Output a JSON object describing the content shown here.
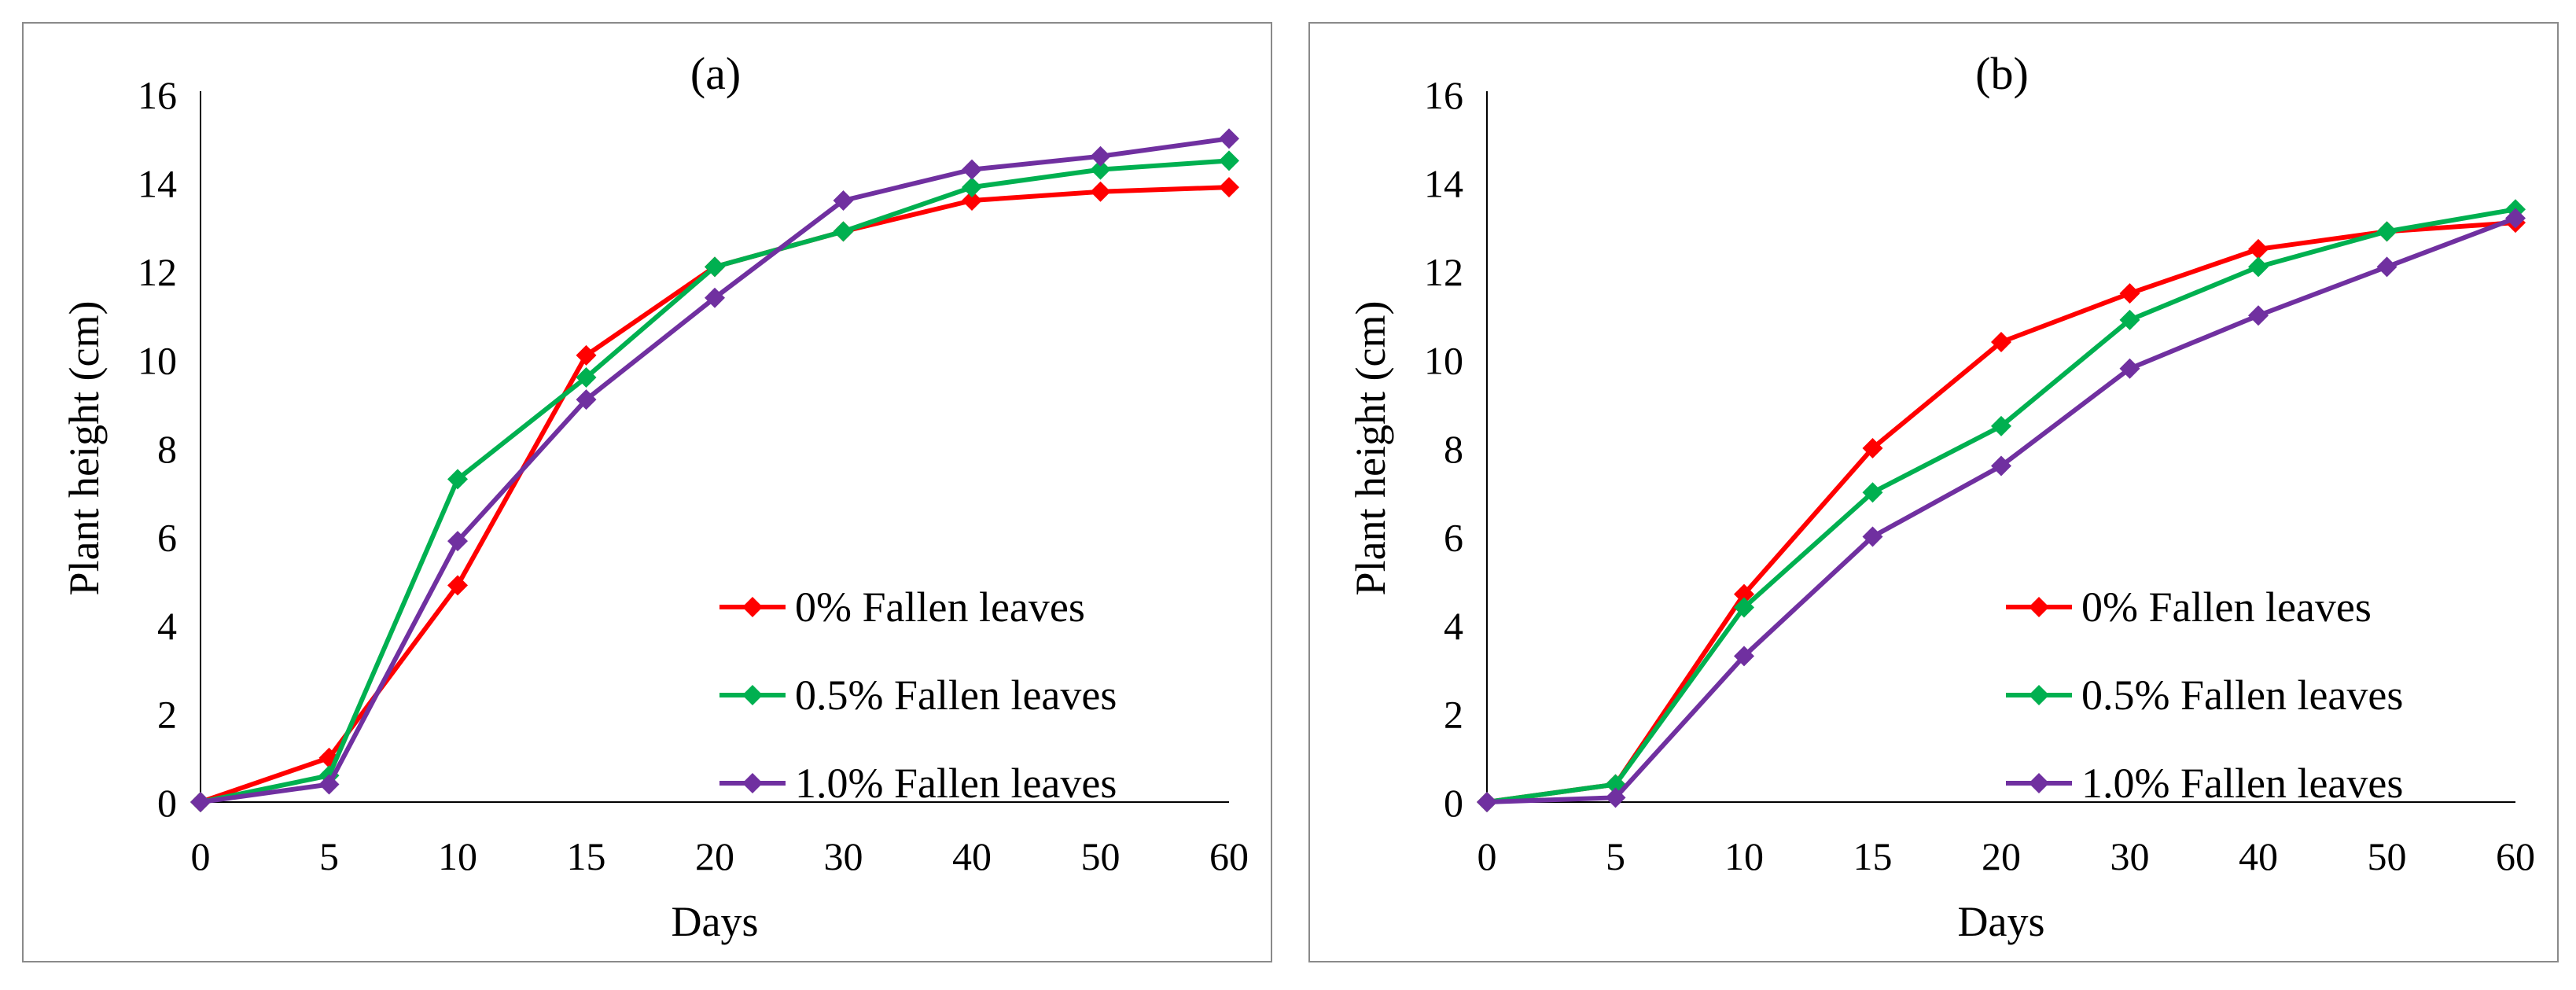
{
  "chart_data": [
    {
      "type": "line",
      "title": "(a)",
      "xlabel": "Days",
      "ylabel": "Plant height (cm)",
      "categories": [
        "0",
        "5",
        "10",
        "15",
        "20",
        "30",
        "40",
        "50",
        "60"
      ],
      "ylim": [
        0,
        16
      ],
      "yticks": [
        "0",
        "2",
        "4",
        "6",
        "8",
        "10",
        "12",
        "14",
        "16"
      ],
      "legend_position": "bottom-right",
      "series": [
        {
          "name": "0% Fallen leaves",
          "color": "#ff0000",
          "values": [
            0,
            1.0,
            4.9,
            10.1,
            12.1,
            12.9,
            13.6,
            13.8,
            13.9
          ]
        },
        {
          "name": "0.5% Fallen leaves",
          "color": "#00b050",
          "values": [
            0,
            0.6,
            7.3,
            9.6,
            12.1,
            12.9,
            13.9,
            14.3,
            14.5
          ]
        },
        {
          "name": "1.0% Fallen leaves",
          "color": "#7030a0",
          "values": [
            0,
            0.4,
            5.9,
            9.1,
            11.4,
            13.6,
            14.3,
            14.6,
            15.0
          ]
        }
      ]
    },
    {
      "type": "line",
      "title": "(b)",
      "xlabel": "Days",
      "ylabel": "Plant height (cm)",
      "categories": [
        "0",
        "5",
        "10",
        "15",
        "20",
        "30",
        "40",
        "50",
        "60"
      ],
      "ylim": [
        0,
        16
      ],
      "yticks": [
        "0",
        "2",
        "4",
        "6",
        "8",
        "10",
        "12",
        "14",
        "16"
      ],
      "legend_position": "bottom-right",
      "series": [
        {
          "name": "0% Fallen leaves",
          "color": "#ff0000",
          "values": [
            0,
            0.4,
            4.7,
            8.0,
            10.4,
            11.5,
            12.5,
            12.9,
            13.1
          ]
        },
        {
          "name": "0.5% Fallen leaves",
          "color": "#00b050",
          "values": [
            0,
            0.4,
            4.4,
            7.0,
            8.5,
            10.9,
            12.1,
            12.9,
            13.4
          ]
        },
        {
          "name": "1.0% Fallen leaves",
          "color": "#7030a0",
          "values": [
            0,
            0.1,
            3.3,
            6.0,
            7.6,
            9.8,
            11.0,
            12.1,
            13.2
          ]
        }
      ]
    }
  ]
}
